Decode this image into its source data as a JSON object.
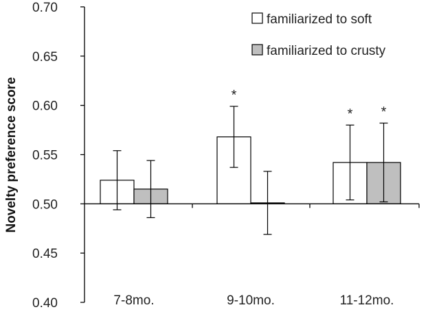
{
  "chart_data": {
    "type": "bar",
    "title": "",
    "xlabel": "",
    "ylabel": "Novelty preference score",
    "ylim": [
      0.4,
      0.7
    ],
    "yticks": [
      "0.40",
      "0.45",
      "0.50",
      "0.55",
      "0.60",
      "0.65",
      "0.70"
    ],
    "baseline": 0.5,
    "categories": [
      "7-8mo.",
      "9-10mo.",
      "11-12mo."
    ],
    "series": [
      {
        "name": "familiarized to soft",
        "color": "#ffffff",
        "values": [
          0.524,
          0.568,
          0.542
        ],
        "error": [
          0.03,
          0.031,
          0.038
        ],
        "significant": [
          false,
          true,
          true
        ]
      },
      {
        "name": "familiarized to crusty",
        "color": "#bfbfbf",
        "values": [
          0.515,
          0.501,
          0.542
        ],
        "error": [
          0.029,
          0.032,
          0.04
        ],
        "significant": [
          false,
          false,
          true
        ]
      }
    ],
    "significance_marker": "*",
    "legend_position": "top-right",
    "grid": false
  }
}
